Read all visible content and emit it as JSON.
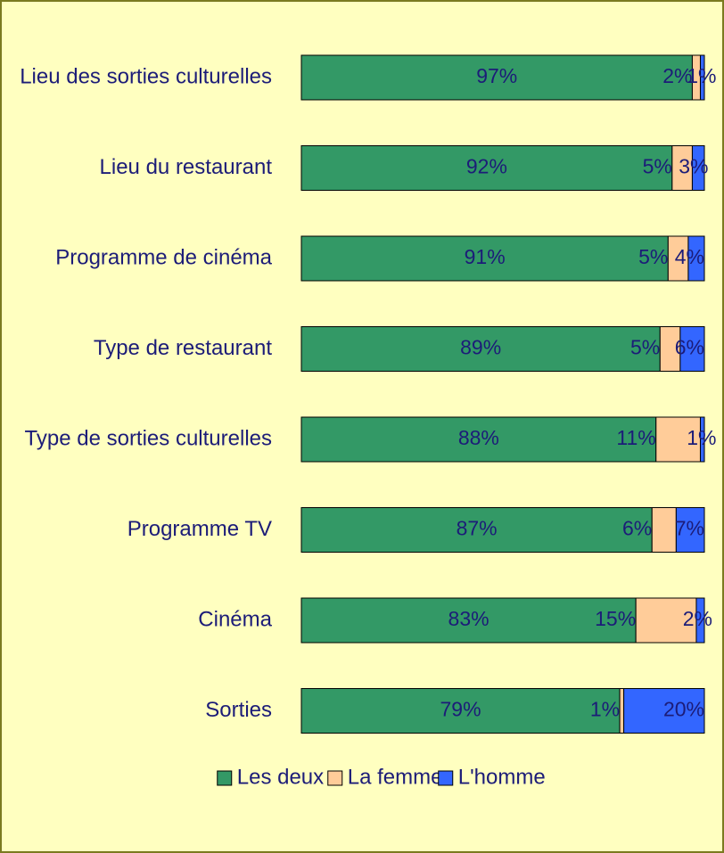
{
  "chart_data": {
    "type": "bar",
    "orientation": "horizontal",
    "stacked": true,
    "categories": [
      "Lieu des sorties culturelles",
      "Lieu du restaurant",
      "Programme de cinéma",
      "Type de restaurant",
      "Type de sorties culturelles",
      "Programme TV",
      "Cinéma",
      "Sorties"
    ],
    "series": [
      {
        "name": "Les deux",
        "color": "#339966",
        "values": [
          97,
          92,
          91,
          89,
          88,
          87,
          83,
          79
        ],
        "value_labels": [
          "97%",
          "92%",
          "91%",
          "89%",
          "88%",
          "87%",
          "83%",
          "79%"
        ]
      },
      {
        "name": "La femme",
        "color": "#ffcc99",
        "values": [
          2,
          5,
          5,
          5,
          11,
          6,
          15,
          1
        ],
        "value_labels": [
          "2%",
          "5%",
          "5%",
          "5%",
          "11%",
          "6%",
          "15%",
          "1%"
        ]
      },
      {
        "name": "L'homme",
        "color": "#3366ff",
        "values": [
          1,
          3,
          4,
          6,
          1,
          7,
          2,
          20
        ],
        "value_labels": [
          "1%",
          "3%",
          "4%",
          "6%",
          "1%",
          "7%",
          "2%",
          "20%"
        ]
      }
    ],
    "legend": "bottom"
  }
}
